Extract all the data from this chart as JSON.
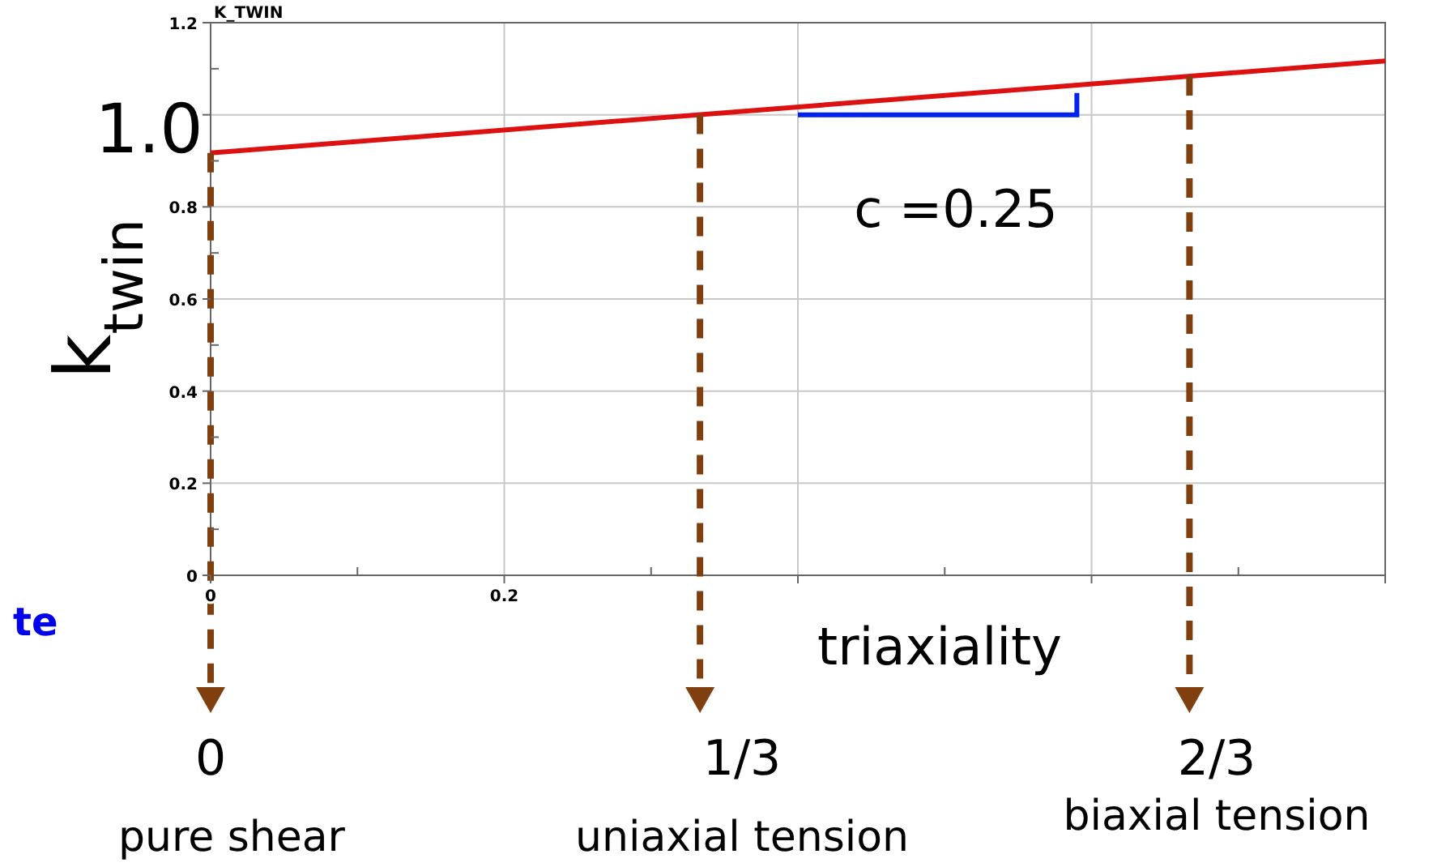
{
  "chart_data": {
    "type": "line",
    "title": "K_TWIN",
    "xlabel": "triaxiality",
    "ylabel": "k$_{twin}$",
    "x": [
      0,
      0.8
    ],
    "series": [
      {
        "color": "#dd1111",
        "values": [
          0.917,
          1.117
        ]
      }
    ],
    "xlim": [
      0,
      0.8
    ],
    "ylim": [
      0,
      1.2
    ],
    "xticks": [
      0,
      0.2,
      {
        "value": 0.4,
        "label": null
      },
      {
        "value": 0.6,
        "label": null
      },
      {
        "value": 0.8,
        "label": null
      }
    ],
    "yticks": [
      0,
      0.2,
      0.4,
      0.6,
      0.8,
      {
        "value": 1,
        "label": null
      },
      1.2
    ],
    "grid": true,
    "marker": "none",
    "line_style": "solid",
    "ref_lines": [
      {
        "axis": "x",
        "value": 0,
        "color": "#7f3f0f",
        "line_style": "dashed"
      },
      {
        "axis": "x",
        "value": 0.3333,
        "color": "#7f3f0f",
        "line_style": "dashed"
      },
      {
        "axis": "x",
        "value": 0.6667,
        "color": "#7f3f0f",
        "line_style": "dashed"
      }
    ],
    "annotations": [
      "1.0",
      "c =0.25",
      "0",
      "1/3",
      "2/3",
      "pure shear",
      "uniaxial tension",
      "biaxial tension",
      "te"
    ]
  }
}
